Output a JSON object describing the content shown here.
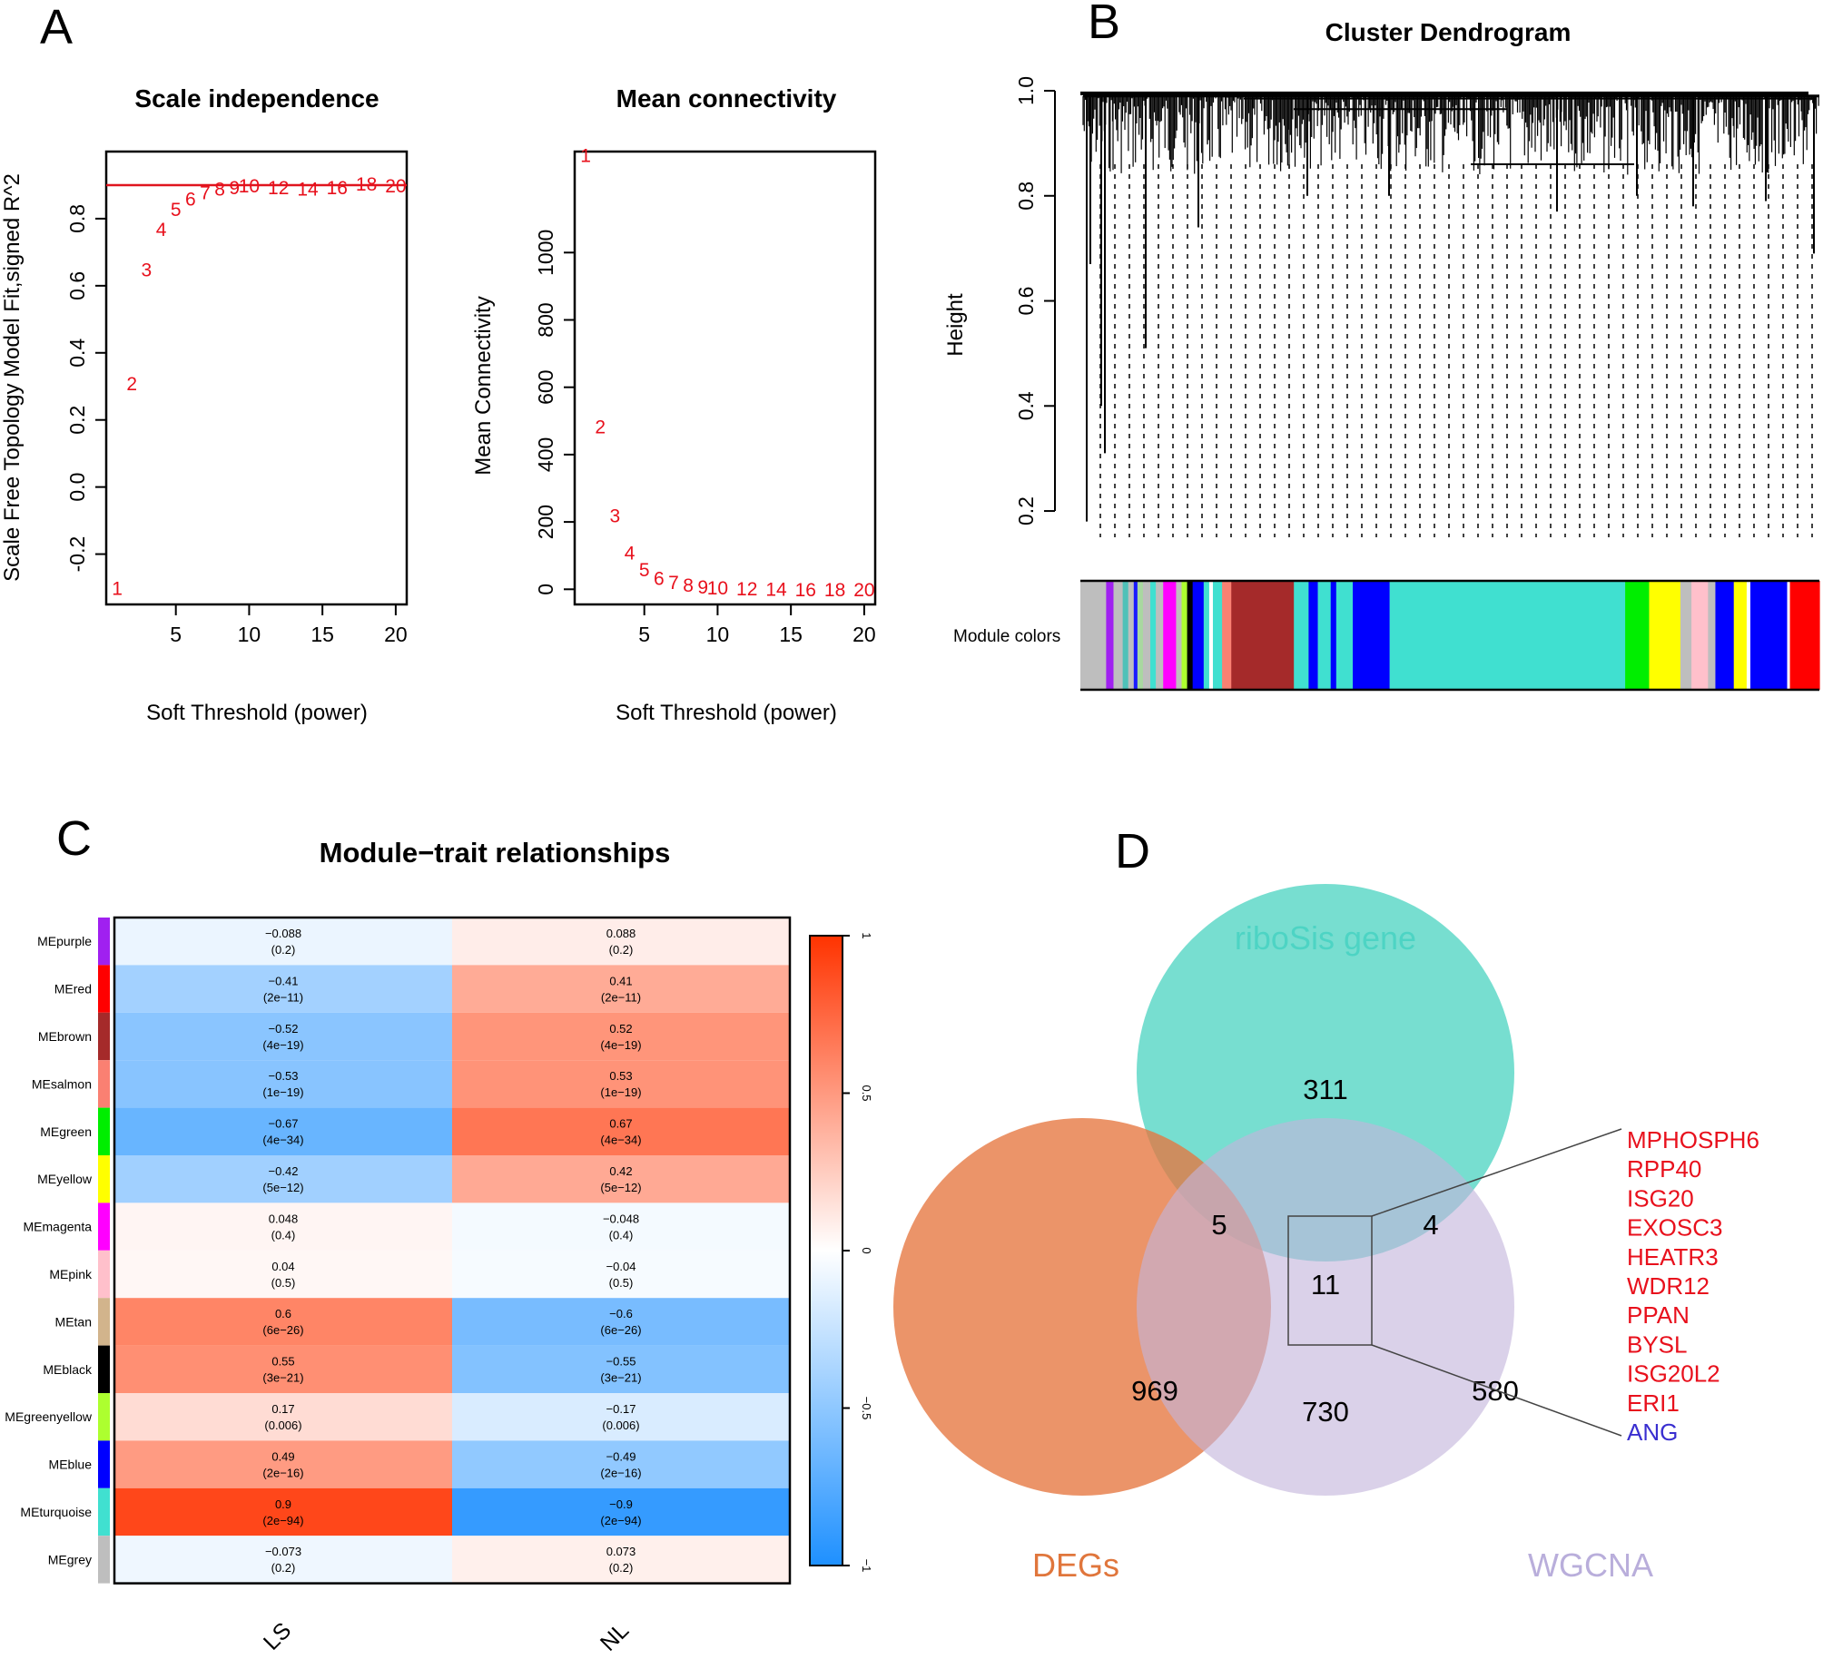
{
  "panels": {
    "A": {
      "letter": "A"
    },
    "B": {
      "letter": "B"
    },
    "C": {
      "letter": "C"
    },
    "D": {
      "letter": "D"
    }
  },
  "colors": {
    "red_line": "#e0141e",
    "red_text": "#e8101c",
    "blue_text": "#3a2fd0",
    "turquoise": "#40e0d0",
    "venn_ribo": "#5fd8c8",
    "venn_degs": "#e5763f",
    "venn_wgcna": "#c3b5dc",
    "label_ribo": "#4dd4c4",
    "label_degs": "#e0763c",
    "label_wgcna": "#b9aedb",
    "heat_neg": "#1e90ff",
    "heat_mid": "#ffffff",
    "heat_pos": "#ff3300"
  },
  "chart_data": [
    {
      "id": "scale_independence",
      "type": "scatter",
      "title": "Scale independence",
      "xlabel": "Soft Threshold (power)",
      "ylabel": "Scale Free Topology Model Fit,signed R^2",
      "xlim": [
        0.25,
        20.75
      ],
      "ylim": [
        -0.35,
        1.0
      ],
      "xticks": [
        5,
        10,
        15,
        20
      ],
      "yticks": [
        -0.2,
        0.0,
        0.2,
        0.4,
        0.6,
        0.8
      ],
      "ytick_labels": [
        "-0.2",
        "0.0",
        "0.2",
        "0.4",
        "0.6",
        "0.8"
      ],
      "hline": 0.9,
      "points": [
        {
          "x": 1,
          "y": -0.3,
          "label": "1"
        },
        {
          "x": 2,
          "y": 0.31,
          "label": "2"
        },
        {
          "x": 3,
          "y": 0.65,
          "label": "3"
        },
        {
          "x": 4,
          "y": 0.77,
          "label": "4"
        },
        {
          "x": 5,
          "y": 0.83,
          "label": "5"
        },
        {
          "x": 6,
          "y": 0.86,
          "label": "6"
        },
        {
          "x": 7,
          "y": 0.88,
          "label": "7"
        },
        {
          "x": 8,
          "y": 0.89,
          "label": "8"
        },
        {
          "x": 9,
          "y": 0.895,
          "label": "9"
        },
        {
          "x": 10,
          "y": 0.9,
          "label": "10"
        },
        {
          "x": 12,
          "y": 0.895,
          "label": "12"
        },
        {
          "x": 14,
          "y": 0.89,
          "label": "14"
        },
        {
          "x": 16,
          "y": 0.895,
          "label": "16"
        },
        {
          "x": 18,
          "y": 0.905,
          "label": "18"
        },
        {
          "x": 20,
          "y": 0.9,
          "label": "20"
        }
      ]
    },
    {
      "id": "mean_connectivity",
      "type": "scatter",
      "title": "Mean connectivity",
      "xlabel": "Soft Threshold (power)",
      "ylabel": "Mean Connectivity",
      "xlim": [
        0.25,
        20.75
      ],
      "ylim": [
        -45,
        1300
      ],
      "xticks": [
        5,
        10,
        15,
        20
      ],
      "yticks": [
        0,
        200,
        400,
        600,
        800,
        1000
      ],
      "ytick_labels": [
        "0",
        "200",
        "400",
        "600",
        "800",
        "1000"
      ],
      "points": [
        {
          "x": 1,
          "y": 1290,
          "label": "1"
        },
        {
          "x": 2,
          "y": 485,
          "label": "2"
        },
        {
          "x": 3,
          "y": 220,
          "label": "3"
        },
        {
          "x": 4,
          "y": 110,
          "label": "4"
        },
        {
          "x": 5,
          "y": 60,
          "label": "5"
        },
        {
          "x": 6,
          "y": 35,
          "label": "6"
        },
        {
          "x": 7,
          "y": 22,
          "label": "7"
        },
        {
          "x": 8,
          "y": 14,
          "label": "8"
        },
        {
          "x": 9,
          "y": 9,
          "label": "9"
        },
        {
          "x": 10,
          "y": 6,
          "label": "10"
        },
        {
          "x": 12,
          "y": 3,
          "label": "12"
        },
        {
          "x": 14,
          "y": 2,
          "label": "14"
        },
        {
          "x": 16,
          "y": 1,
          "label": "16"
        },
        {
          "x": 18,
          "y": 1,
          "label": "18"
        },
        {
          "x": 20,
          "y": 0.5,
          "label": "20"
        }
      ]
    },
    {
      "id": "cluster_dendrogram",
      "type": "dendrogram",
      "title": "Cluster Dendrogram",
      "ylabel": "Height",
      "ylim": [
        0.15,
        1.0
      ],
      "yticks": [
        0.2,
        0.4,
        0.6,
        0.8,
        1.0
      ],
      "ytick_labels": [
        "0.2",
        "0.4",
        "0.6",
        "0.8",
        "1.0"
      ],
      "color_bar_label": "Module colors",
      "module_color_segments": [
        {
          "color": "#bebebe",
          "width": 0.028
        },
        {
          "color": "#a020f0",
          "width": 0.008
        },
        {
          "color": "#bebebe",
          "width": 0.01
        },
        {
          "color": "#4fc1b8",
          "width": 0.006
        },
        {
          "color": "#bebebe",
          "width": 0.006
        },
        {
          "color": "#1a1aff",
          "width": 0.004
        },
        {
          "color": "#a8d8a0",
          "width": 0.006
        },
        {
          "color": "#bebebe",
          "width": 0.008
        },
        {
          "color": "#40e0d0",
          "width": 0.006
        },
        {
          "color": "#bebebe",
          "width": 0.008
        },
        {
          "color": "#ff00ff",
          "width": 0.014
        },
        {
          "color": "#bebebe",
          "width": 0.006
        },
        {
          "color": "#adff2f",
          "width": 0.006
        },
        {
          "color": "#000000",
          "width": 0.006
        },
        {
          "color": "#0000ff",
          "width": 0.012
        },
        {
          "color": "#40e0d0",
          "width": 0.006
        },
        {
          "color": "#ffffff",
          "width": 0.004
        },
        {
          "color": "#40e0d0",
          "width": 0.01
        },
        {
          "color": "#fa8072",
          "width": 0.01
        },
        {
          "color": "#a52a2a",
          "width": 0.068
        },
        {
          "color": "#40e0d0",
          "width": 0.016
        },
        {
          "color": "#0000ff",
          "width": 0.01
        },
        {
          "color": "#40e0d0",
          "width": 0.014
        },
        {
          "color": "#0000ff",
          "width": 0.006
        },
        {
          "color": "#40e0d0",
          "width": 0.018
        },
        {
          "color": "#0000ff",
          "width": 0.04
        },
        {
          "color": "#40e0d0",
          "width": 0.256
        },
        {
          "color": "#00ee00",
          "width": 0.026
        },
        {
          "color": "#ffff00",
          "width": 0.034
        },
        {
          "color": "#bebebe",
          "width": 0.012
        },
        {
          "color": "#ffc0cb",
          "width": 0.018
        },
        {
          "color": "#bebebe",
          "width": 0.008
        },
        {
          "color": "#0000ff",
          "width": 0.02
        },
        {
          "color": "#ffff00",
          "width": 0.014
        },
        {
          "color": "#ffffff",
          "width": 0.004
        },
        {
          "color": "#0000ff",
          "width": 0.04
        },
        {
          "color": "#ffffff",
          "width": 0.003
        },
        {
          "color": "#ff0000",
          "width": 0.032
        }
      ]
    },
    {
      "id": "module_trait",
      "type": "heatmap",
      "title": "Module−trait relationships",
      "columns": [
        "LS",
        "NL"
      ],
      "colorbar_ticks": [
        1,
        0.5,
        0,
        -0.5,
        -1
      ],
      "colorbar_labels": [
        "1",
        "0.5",
        "0",
        "−0.5",
        "−1"
      ],
      "rows": [
        {
          "module": "MEpurple",
          "color": "#a020f0",
          "ls": -0.088,
          "nl": 0.088,
          "ls_text": "−0.088",
          "nl_text": "0.088",
          "p": "(0.2)"
        },
        {
          "module": "MEred",
          "color": "#ff0000",
          "ls": -0.41,
          "nl": 0.41,
          "ls_text": "−0.41",
          "nl_text": "0.41",
          "p": "(2e−11)"
        },
        {
          "module": "MEbrown",
          "color": "#a52a2a",
          "ls": -0.52,
          "nl": 0.52,
          "ls_text": "−0.52",
          "nl_text": "0.52",
          "p": "(4e−19)"
        },
        {
          "module": "MEsalmon",
          "color": "#fa8072",
          "ls": -0.53,
          "nl": 0.53,
          "ls_text": "−0.53",
          "nl_text": "0.53",
          "p": "(1e−19)"
        },
        {
          "module": "MEgreen",
          "color": "#00ee00",
          "ls": -0.67,
          "nl": 0.67,
          "ls_text": "−0.67",
          "nl_text": "0.67",
          "p": "(4e−34)"
        },
        {
          "module": "MEyellow",
          "color": "#ffff00",
          "ls": -0.42,
          "nl": 0.42,
          "ls_text": "−0.42",
          "nl_text": "0.42",
          "p": "(5e−12)"
        },
        {
          "module": "MEmagenta",
          "color": "#ff00ff",
          "ls": 0.048,
          "nl": -0.048,
          "ls_text": "0.048",
          "nl_text": "−0.048",
          "p": "(0.4)"
        },
        {
          "module": "MEpink",
          "color": "#ffc0cb",
          "ls": 0.04,
          "nl": -0.04,
          "ls_text": "0.04",
          "nl_text": "−0.04",
          "p": "(0.5)"
        },
        {
          "module": "MEtan",
          "color": "#d2b48c",
          "ls": 0.6,
          "nl": -0.6,
          "ls_text": "0.6",
          "nl_text": "−0.6",
          "p": "(6e−26)"
        },
        {
          "module": "MEblack",
          "color": "#000000",
          "ls": 0.55,
          "nl": -0.55,
          "ls_text": "0.55",
          "nl_text": "−0.55",
          "p": "(3e−21)"
        },
        {
          "module": "MEgreenyellow",
          "color": "#adff2f",
          "ls": 0.17,
          "nl": -0.17,
          "ls_text": "0.17",
          "nl_text": "−0.17",
          "p": "(0.006)"
        },
        {
          "module": "MEblue",
          "color": "#0000ff",
          "ls": 0.49,
          "nl": -0.49,
          "ls_text": "0.49",
          "nl_text": "−0.49",
          "p": "(2e−16)"
        },
        {
          "module": "MEturquoise",
          "color": "#40e0d0",
          "ls": 0.9,
          "nl": -0.9,
          "ls_text": "0.9",
          "nl_text": "−0.9",
          "p": "(2e−94)"
        },
        {
          "module": "MEgrey",
          "color": "#bebebe",
          "ls": -0.073,
          "nl": 0.073,
          "ls_text": "−0.073",
          "nl_text": "0.073",
          "p": "(0.2)"
        }
      ]
    },
    {
      "id": "venn",
      "type": "venn",
      "sets": [
        "riboSis gene",
        "DEGs",
        "WGCNA"
      ],
      "regions": {
        "ribo_only": "311",
        "ribo_degs": "5",
        "ribo_wgcna": "4",
        "all_three": "11",
        "degs_only": "969",
        "degs_wgcna": "730",
        "wgcna_only": "580"
      },
      "highlight_genes": [
        {
          "name": "MPHOSPH6",
          "color": "red"
        },
        {
          "name": "RPP40",
          "color": "red"
        },
        {
          "name": "ISG20",
          "color": "red"
        },
        {
          "name": "EXOSC3",
          "color": "red"
        },
        {
          "name": "HEATR3",
          "color": "red"
        },
        {
          "name": "WDR12",
          "color": "red"
        },
        {
          "name": "PPAN",
          "color": "red"
        },
        {
          "name": "BYSL",
          "color": "red"
        },
        {
          "name": "ISG20L2",
          "color": "red"
        },
        {
          "name": "ERI1",
          "color": "red"
        },
        {
          "name": "ANG",
          "color": "blue"
        }
      ]
    }
  ]
}
